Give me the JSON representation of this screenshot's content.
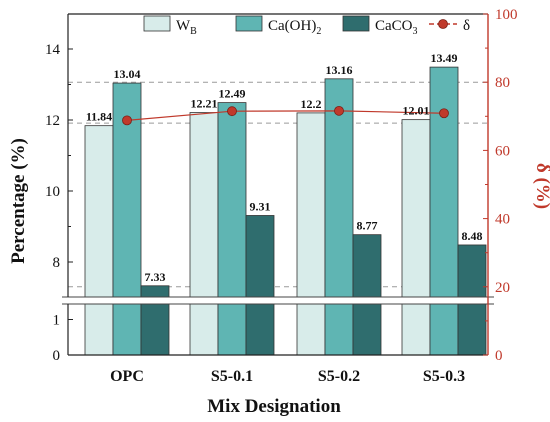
{
  "chart_data": {
    "type": "bar",
    "title": "",
    "xlabel": "Mix Designation",
    "ylabel": "Percentage (%)",
    "y2label": "δ (%)",
    "categories": [
      "OPC",
      "S5-0.1",
      "S5-0.2",
      "S5-0.3"
    ],
    "series": [
      {
        "name": "W_B",
        "display": "WB",
        "color": "#d8ecea",
        "values": [
          11.84,
          12.21,
          12.2,
          12.01
        ],
        "labels": [
          "11.84",
          "12.21",
          "12.2",
          "12.01"
        ]
      },
      {
        "name": "Ca(OH)2",
        "display": "Ca(OH)2",
        "color": "#5fb5b3",
        "values": [
          13.04,
          12.49,
          13.16,
          13.49
        ],
        "labels": [
          "13.04",
          "12.49",
          "13.16",
          "13.49"
        ]
      },
      {
        "name": "CaCO3",
        "display": "CaCO3",
        "color": "#2f6d6e",
        "values": [
          7.33,
          9.31,
          8.77,
          8.48
        ],
        "labels": [
          "7.33",
          "9.31",
          "8.77",
          "8.48"
        ]
      }
    ],
    "line_series": {
      "name": "δ",
      "axis": "right",
      "color": "#c0392b",
      "values": [
        68.8,
        71.5,
        71.6,
        70.9
      ]
    },
    "y_axis": {
      "scale": "broken",
      "lower_range": [
        0,
        1.5
      ],
      "upper_range": [
        7.3,
        15
      ],
      "ticks": [
        "0",
        "1",
        "8",
        "10",
        "12",
        "14"
      ]
    },
    "y2_axis": {
      "range": [
        0,
        100
      ],
      "ticks": [
        "0",
        "20",
        "40",
        "60",
        "80",
        "100"
      ],
      "color": "#c0392b"
    },
    "reference_lines": [
      80,
      68,
      20
    ],
    "grid": false,
    "legend_position": "top"
  }
}
